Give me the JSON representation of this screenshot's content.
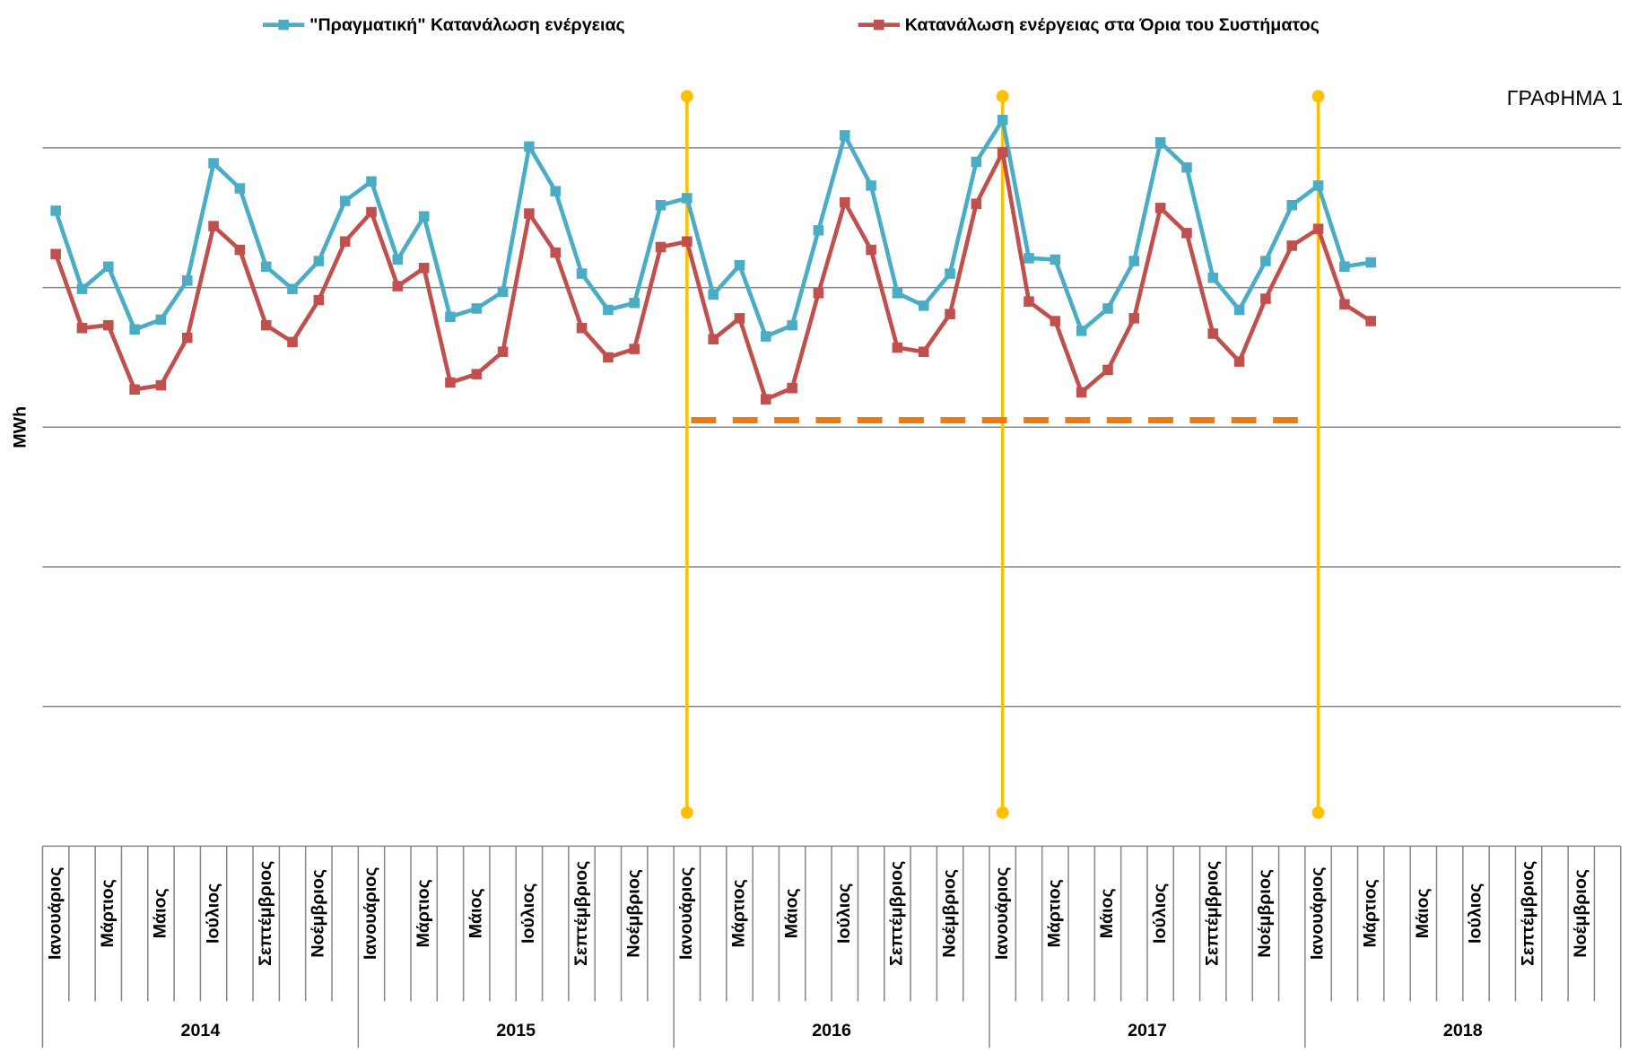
{
  "chart_data": {
    "type": "line",
    "legend": "top",
    "y_label": "MWh",
    "annotation": "ΓΡΑΦΗΜΑ 1",
    "categories": [
      "Ιανουάριος",
      null,
      "Μάρτιος",
      null,
      "Μάιος",
      null,
      "Ιούλιος",
      null,
      "Σεπτέμβριος",
      null,
      "Νοέμβριος",
      null,
      "Ιανουάριος",
      null,
      "Μάρτιος",
      null,
      "Μάιος",
      null,
      "Ιούλιος",
      null,
      "Σεπτέμβριος",
      null,
      "Νοέμβριος",
      null,
      "Ιανουάριος",
      null,
      "Μάρτιος",
      null,
      "Μάιος",
      null,
      "Ιούλιος",
      null,
      "Σεπτέμβριος",
      null,
      "Νοέμβριος",
      null,
      "Ιανουάριος",
      null,
      "Μάρτιος",
      null,
      "Μάιος",
      null,
      "Ιούλιος",
      null,
      "Σεπτέμβριος",
      null,
      "Νοέμβριος",
      null,
      "Ιανουάριος",
      null,
      "Μάρτιος",
      null,
      "Μάιος",
      null,
      "Ιούλιος",
      null,
      "Σεπτέμβριος",
      null,
      "Νοέμβριος",
      null
    ],
    "years": [
      "2014",
      "2015",
      "2016",
      "2017",
      "2018"
    ],
    "ylim": [
      0,
      6
    ],
    "grid_lines": [
      1,
      2,
      3,
      4,
      5
    ],
    "series": [
      {
        "name": "\"Πραγματική\" Κατανάλωση ενέργειας",
        "color": "#4bacc6",
        "values": [
          4.55,
          3.99,
          4.15,
          3.7,
          3.77,
          4.05,
          4.89,
          4.71,
          4.15,
          3.99,
          4.19,
          4.62,
          4.76,
          4.2,
          4.51,
          3.79,
          3.85,
          3.97,
          5.01,
          4.69,
          4.1,
          3.84,
          3.89,
          4.59,
          4.64,
          3.95,
          4.16,
          3.65,
          3.73,
          4.41,
          5.09,
          4.73,
          3.96,
          3.87,
          4.1,
          4.9,
          5.2,
          4.21,
          4.2,
          3.69,
          3.85,
          4.19,
          5.04,
          4.86,
          4.07,
          3.84,
          4.19,
          4.59,
          4.73,
          4.15,
          4.18,
          null,
          null,
          null,
          null,
          null,
          null,
          null,
          null,
          null
        ]
      },
      {
        "name": "Κατανάλωση ενέργειας στα Όρια του Συστήματος",
        "color": "#c0504d",
        "values": [
          4.24,
          3.71,
          3.73,
          3.27,
          3.3,
          3.64,
          4.44,
          4.27,
          3.73,
          3.61,
          3.91,
          4.33,
          4.54,
          4.01,
          4.14,
          3.32,
          3.38,
          3.54,
          4.53,
          4.25,
          3.71,
          3.5,
          3.56,
          4.29,
          4.33,
          3.63,
          3.78,
          3.2,
          3.28,
          3.96,
          4.61,
          4.27,
          3.57,
          3.54,
          3.81,
          4.6,
          4.97,
          3.9,
          3.76,
          3.25,
          3.41,
          3.78,
          4.57,
          4.39,
          3.67,
          3.47,
          3.92,
          4.3,
          4.42,
          3.88,
          3.76,
          null,
          null,
          null,
          null,
          null,
          null,
          null,
          null,
          null
        ]
      }
    ],
    "vertical_markers": {
      "color": "#ffc000",
      "categories": [
        24,
        36,
        48
      ],
      "y_range": [
        0.24,
        5.37
      ]
    },
    "dashed_line": {
      "color": "#f07a10",
      "categories": [
        24,
        48
      ],
      "y": 3.05
    }
  }
}
